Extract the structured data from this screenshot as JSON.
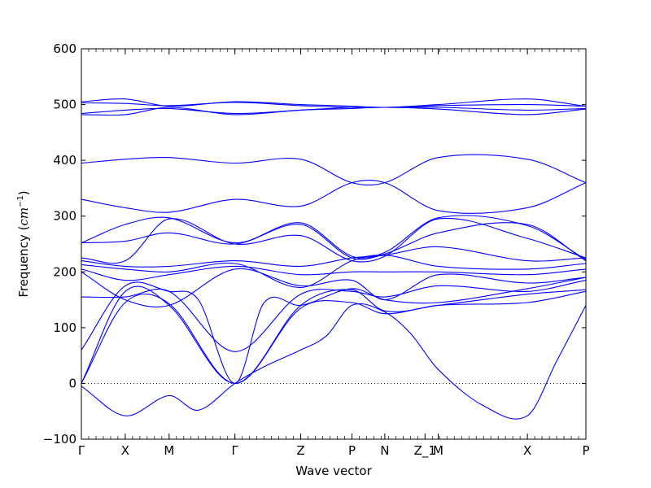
{
  "chart_data": {
    "type": "line",
    "title": "",
    "xlabel": "Wave vector",
    "ylabel": "Frequency (cm^-1)",
    "ylabel_main": "Frequency (",
    "ylabel_unit": "cm",
    "ylabel_exp": "−1",
    "ylabel_close": ")",
    "ylim": [
      -100,
      600
    ],
    "yticks": [
      -100,
      0,
      100,
      200,
      300,
      400,
      500,
      600
    ],
    "xlim": [
      0,
      6.9
    ],
    "xticks": [
      {
        "label": "Γ",
        "x": 0
      },
      {
        "label": "X",
        "x": 0.6
      },
      {
        "label": "M",
        "x": 1.2
      },
      {
        "label": "Γ",
        "x": 2.1
      },
      {
        "label": "Z",
        "x": 3.0
      },
      {
        "label": "P",
        "x": 3.7
      },
      {
        "label": "N",
        "x": 4.15
      },
      {
        "label": "Z_1",
        "x": 4.7
      },
      {
        "label": "M",
        "x": 4.88
      },
      {
        "label": "X",
        "x": 6.1
      },
      {
        "label": "P",
        "x": 6.9
      }
    ],
    "zero_line": 0,
    "line_color": "#0000ff",
    "series": [
      {
        "x": [
          0,
          0.6,
          1.2,
          1.6,
          2.1,
          2.5,
          3.0,
          3.35,
          3.7,
          4.15,
          4.5,
          4.88,
          5.5,
          6.1,
          6.5,
          6.9
        ],
        "y": [
          -5,
          -58,
          -22,
          -48,
          0,
          30,
          60,
          85,
          140,
          128,
          90,
          25,
          -40,
          -58,
          40,
          140
        ]
      },
      {
        "x": [
          0,
          0.6,
          1.2,
          2.1,
          3.0,
          3.7,
          4.15,
          4.88,
          6.1,
          6.9
        ],
        "y": [
          0,
          145,
          143,
          0,
          135,
          145,
          125,
          140,
          145,
          165
        ]
      },
      {
        "x": [
          0,
          0.6,
          1.2,
          2.1,
          3.0,
          3.7,
          4.15,
          4.88,
          6.1,
          6.9
        ],
        "y": [
          0,
          165,
          140,
          0,
          140,
          168,
          130,
          140,
          160,
          168
        ]
      },
      {
        "x": [
          0,
          0.6,
          1.2,
          1.6,
          2.1,
          2.5,
          3.0,
          3.7,
          4.15,
          4.88,
          6.1,
          6.9
        ],
        "y": [
          60,
          175,
          165,
          150,
          0,
          145,
          140,
          170,
          150,
          145,
          170,
          190
        ]
      },
      {
        "x": [
          0,
          0.6,
          1.2,
          2.1,
          3.0,
          3.7,
          4.15,
          4.88,
          6.1,
          6.9
        ],
        "y": [
          155,
          155,
          165,
          57,
          160,
          165,
          155,
          175,
          165,
          185
        ]
      },
      {
        "x": [
          0,
          0.6,
          1.2,
          2.1,
          3.0,
          3.7,
          4.15,
          4.88,
          6.1,
          6.9
        ],
        "y": [
          200,
          150,
          140,
          205,
          175,
          185,
          150,
          195,
          180,
          190
        ]
      },
      {
        "x": [
          0,
          0.6,
          1.2,
          2.1,
          3.0,
          3.7,
          4.15,
          4.88,
          6.1,
          6.9
        ],
        "y": [
          205,
          185,
          195,
          210,
          195,
          200,
          200,
          200,
          195,
          205
        ]
      },
      {
        "x": [
          0,
          0.6,
          1.2,
          2.1,
          3.0,
          3.7,
          4.15,
          4.88,
          6.1,
          6.9
        ],
        "y": [
          213,
          205,
          200,
          215,
          172,
          220,
          230,
          210,
          205,
          215
        ]
      },
      {
        "x": [
          0,
          0.6,
          1.2,
          2.1,
          3.0,
          3.7,
          4.15,
          4.88,
          6.1,
          6.9
        ],
        "y": [
          220,
          210,
          210,
          220,
          210,
          225,
          230,
          245,
          220,
          225
        ]
      },
      {
        "x": [
          0,
          0.6,
          1.2,
          2.1,
          3.0,
          3.7,
          4.15,
          4.88,
          6.1,
          6.9
        ],
        "y": [
          225,
          220,
          295,
          250,
          265,
          220,
          228,
          295,
          260,
          225
        ]
      },
      {
        "x": [
          0,
          0.6,
          1.2,
          2.1,
          3.0,
          3.7,
          4.15,
          4.88,
          6.1,
          6.9
        ],
        "y": [
          252,
          255,
          270,
          250,
          285,
          225,
          232,
          270,
          285,
          220
        ]
      },
      {
        "x": [
          0,
          0.6,
          1.2,
          2.1,
          3.0,
          3.7,
          4.15,
          4.88,
          6.1,
          6.9
        ],
        "y": [
          252,
          285,
          297,
          252,
          288,
          228,
          235,
          297,
          283,
          222
        ]
      },
      {
        "x": [
          0,
          0.6,
          1.2,
          2.1,
          3.0,
          3.7,
          4.15,
          4.88,
          6.1,
          6.9
        ],
        "y": [
          330,
          315,
          307,
          330,
          318,
          360,
          360,
          310,
          315,
          360
        ]
      },
      {
        "x": [
          0,
          0.6,
          1.2,
          2.1,
          3.0,
          3.7,
          4.15,
          4.88,
          6.1,
          6.9
        ],
        "y": [
          395,
          402,
          405,
          395,
          402,
          360,
          360,
          405,
          402,
          360
        ]
      },
      {
        "x": [
          0,
          0.6,
          1.2,
          2.1,
          3.0,
          3.7,
          4.15,
          4.88,
          6.1,
          6.9
        ],
        "y": [
          482,
          482,
          495,
          482,
          490,
          493,
          495,
          492,
          482,
          492
        ]
      },
      {
        "x": [
          0,
          0.6,
          1.2,
          2.1,
          3.0,
          3.7,
          4.15,
          4.88,
          6.1,
          6.9
        ],
        "y": [
          484,
          490,
          493,
          484,
          490,
          495,
          495,
          495,
          490,
          493
        ]
      },
      {
        "x": [
          0,
          0.6,
          1.2,
          2.1,
          3.0,
          3.7,
          4.15,
          4.88,
          6.1,
          6.9
        ],
        "y": [
          503,
          502,
          498,
          504,
          498,
          495,
          495,
          498,
          500,
          497
        ]
      },
      {
        "x": [
          0,
          0.6,
          1.2,
          2.1,
          3.0,
          3.7,
          4.15,
          4.88,
          6.1,
          6.9
        ],
        "y": [
          505,
          510,
          497,
          505,
          500,
          497,
          495,
          500,
          510,
          497
        ]
      }
    ]
  }
}
